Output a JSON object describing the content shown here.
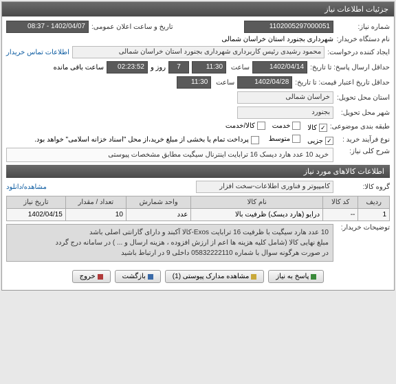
{
  "header": {
    "title": "جزئیات اطلاعات نیاز"
  },
  "meta": {
    "need_no_label": "شماره نیاز:",
    "need_no": "1102005297000051",
    "announce_label": "تاریخ و ساعت اعلان عمومی:",
    "announce_value": "1402/04/07 - 08:37",
    "buyer_label": "نام دستگاه خریدار:",
    "buyer_value": "شهرداری بجنورد استان خراسان شمالی",
    "requester_label": "ایجاد کننده درخواست:",
    "requester_value": "محمود رشیدی رئیس کاربرداری شهرداری بجنورد استان خراسان شمالی",
    "contact_label": "اطلاعات تماس خریدار",
    "deadline_label": "حداقل ارسال پاسخ: تا تاریخ:",
    "deadline_date": "1402/04/14",
    "time_label": "ساعت",
    "deadline_time": "11:30",
    "days_label": "روز و",
    "days_value": "7",
    "remain_value": "02:23:52",
    "remain_label": "ساعت باقی مانده",
    "validity_label": "حداقل تاریخ اعتبار قیمت: تا تاریخ:",
    "validity_date": "1402/04/28",
    "validity_time": "11:30",
    "province_label": "استان محل تحویل:",
    "province_value": "خراسان شمالی",
    "city_label": "شهر محل تحویل:",
    "city_value": "بجنورد",
    "subject_label": "طبقه بندی موضوعی:",
    "cats": [
      {
        "label": "کالا",
        "checked": true
      },
      {
        "label": "خدمت",
        "checked": false
      },
      {
        "label": "کالا/خدمت",
        "checked": false
      }
    ],
    "process_label": "نوع فرآیند خرید :",
    "procs": [
      {
        "label": "جزیی",
        "checked": true
      },
      {
        "label": "متوسط",
        "checked": false
      }
    ],
    "partial_pay": "پرداخت تمام یا بخشی از مبلغ خرید،از محل \"اسناد خزانه اسلامی\" خواهد بود.",
    "partial_checked": false,
    "desc_label": "شرح کلی نیاز:",
    "desc_value": "خرید 10 عدد هارد دیسک 16 ترابایت اینترنال سیگیت مطابق مشخصات پیوستی"
  },
  "goods": {
    "section_title": "اطلاعات کالاهای مورد نیاز",
    "group_label": "گروه کالا:",
    "group_value": "کامپیوتر و فناوری اطلاعات-سخت افزار",
    "download_label": "مشاهده/دانلود",
    "table": {
      "cols": [
        "ردیف",
        "کد کالا",
        "نام کالا",
        "واحد شمارش",
        "تعداد / مقدار",
        "تاریخ نیاز"
      ],
      "rows": [
        [
          "1",
          "--",
          "درایو (هارد دیسک) ظرفیت بالا",
          "عدد",
          "10",
          "1402/04/15"
        ]
      ]
    },
    "extra_label": "توضیحات خریدار:",
    "extra_lines": [
      "10 عدد هارد سیگیت با ظرفیت 16 ترابایت Exos-کالا آکبند و دارای گارانتی اصلی باشد",
      "مبلغ نهایی کالا (شامل کلیه هزینه ها اعم از ارزش افزوده ، هزینه ارسال و ... ) در سامانه درج گردد",
      "در صورت هرگونه سوال با شماره 05832222110 داخلی 9 در ارتباط باشید"
    ]
  },
  "buttons": {
    "respond": "پاسخ به نیاز",
    "attachments": "مشاهده مدارک پیوستی (1)",
    "back": "بازگشت",
    "exit": "خروج"
  }
}
